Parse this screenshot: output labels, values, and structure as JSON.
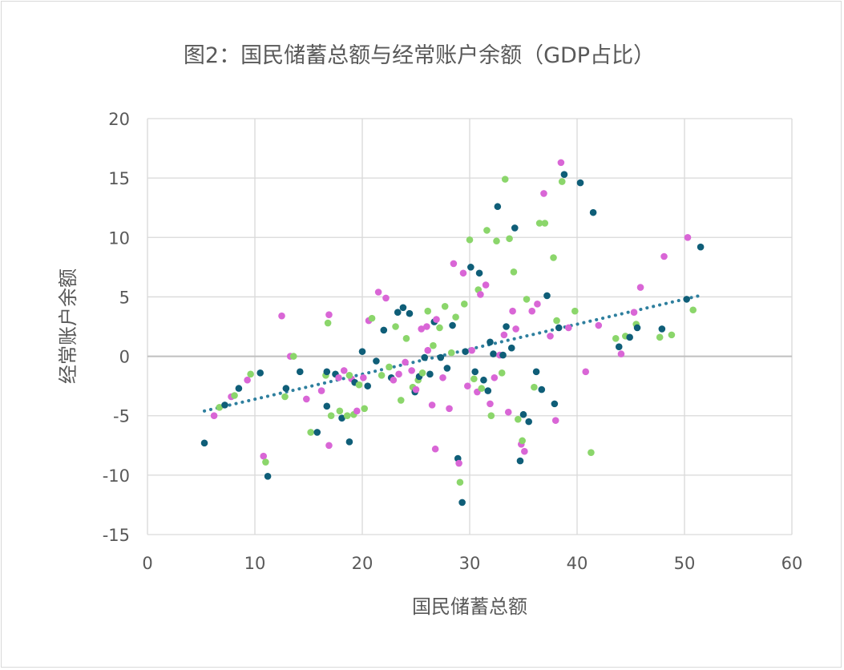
{
  "chart_data": {
    "type": "scatter",
    "title": "图2：国民储蓄总额与经常账户余额（GDP占比）",
    "xlabel": "国民储蓄总额",
    "ylabel": "经常账户余额",
    "xlim": [
      0,
      60
    ],
    "ylim": [
      -15,
      20
    ],
    "xticks": [
      "0",
      "10",
      "20",
      "30",
      "40",
      "50",
      "60"
    ],
    "yticks": [
      "-15",
      "-10",
      "-5",
      "0",
      "5",
      "10",
      "15",
      "20"
    ],
    "grid": true,
    "legend": "none",
    "palette": [
      "#0f5e78",
      "#1f4e20",
      "#2f9e44",
      "#8bd66b",
      "#e27a3f",
      "#f29d6b",
      "#6b1f6b",
      "#d966d6",
      "#5bbce6",
      "#1a8fce",
      "#c0551f"
    ],
    "trendline": {
      "style": "dotted",
      "color": "#2e7f9e",
      "from": [
        5.3,
        -4.6
      ],
      "to": [
        51.4,
        5.1
      ]
    },
    "points": [
      [
        5.3,
        -7.3
      ],
      [
        6.2,
        -5.0
      ],
      [
        6.7,
        -4.3
      ],
      [
        7.2,
        -4.1
      ],
      [
        7.8,
        -3.4
      ],
      [
        8.1,
        -3.3
      ],
      [
        8.5,
        -2.7
      ],
      [
        9.3,
        -2.0
      ],
      [
        9.6,
        -1.5
      ],
      [
        10.5,
        -1.4
      ],
      [
        10.8,
        -8.4
      ],
      [
        11.0,
        -8.9
      ],
      [
        11.2,
        -10.1
      ],
      [
        12.5,
        3.4
      ],
      [
        12.8,
        -3.4
      ],
      [
        12.9,
        -2.7
      ],
      [
        13.3,
        0.0
      ],
      [
        13.6,
        0.0
      ],
      [
        14.2,
        -1.3
      ],
      [
        14.8,
        -3.6
      ],
      [
        15.2,
        -6.4
      ],
      [
        15.8,
        -6.4
      ],
      [
        16.2,
        -2.9
      ],
      [
        16.6,
        -1.6
      ],
      [
        16.7,
        -1.3
      ],
      [
        16.9,
        3.5
      ],
      [
        16.8,
        2.8
      ],
      [
        16.7,
        -4.2
      ],
      [
        16.9,
        -7.5
      ],
      [
        17.1,
        -5.0
      ],
      [
        17.5,
        -1.5
      ],
      [
        17.8,
        -1.8
      ],
      [
        17.9,
        -4.6
      ],
      [
        18.1,
        -5.2
      ],
      [
        18.3,
        -1.2
      ],
      [
        18.6,
        -5.0
      ],
      [
        18.8,
        -7.2
      ],
      [
        19.0,
        -1.9
      ],
      [
        19.2,
        -4.9
      ],
      [
        19.3,
        -2.2
      ],
      [
        19.5,
        -4.6
      ],
      [
        19.7,
        -2.4
      ],
      [
        20.0,
        0.4
      ],
      [
        20.1,
        -1.8
      ],
      [
        20.2,
        -4.4
      ],
      [
        20.5,
        -2.5
      ],
      [
        20.6,
        3.0
      ],
      [
        20.9,
        3.2
      ],
      [
        21.3,
        -0.4
      ],
      [
        21.5,
        5.4
      ],
      [
        21.8,
        -1.6
      ],
      [
        22.0,
        2.2
      ],
      [
        22.2,
        4.9
      ],
      [
        22.5,
        -0.9
      ],
      [
        22.7,
        -1.8
      ],
      [
        22.9,
        -2.0
      ],
      [
        23.1,
        2.5
      ],
      [
        23.3,
        3.7
      ],
      [
        23.4,
        -1.5
      ],
      [
        23.6,
        -3.7
      ],
      [
        23.8,
        4.1
      ],
      [
        24.0,
        -0.5
      ],
      [
        24.1,
        1.5
      ],
      [
        24.4,
        3.6
      ],
      [
        24.6,
        -1.2
      ],
      [
        24.7,
        -2.6
      ],
      [
        24.9,
        -3.0
      ],
      [
        25.0,
        -2.8
      ],
      [
        25.2,
        -2.0
      ],
      [
        25.3,
        -1.7
      ],
      [
        25.5,
        2.3
      ],
      [
        25.6,
        -1.4
      ],
      [
        25.8,
        -0.1
      ],
      [
        26.0,
        2.5
      ],
      [
        26.1,
        3.8
      ],
      [
        26.3,
        -1.5
      ],
      [
        26.5,
        -4.1
      ],
      [
        26.6,
        0.9
      ],
      [
        26.7,
        2.9
      ],
      [
        26.9,
        3.1
      ],
      [
        27.2,
        2.4
      ],
      [
        27.3,
        -0.1
      ],
      [
        27.5,
        -1.8
      ],
      [
        27.7,
        4.2
      ],
      [
        27.9,
        -1.0
      ],
      [
        28.1,
        -4.4
      ],
      [
        28.3,
        0.3
      ],
      [
        28.4,
        2.6
      ],
      [
        28.5,
        7.8
      ],
      [
        28.7,
        3.3
      ],
      [
        28.9,
        -8.6
      ],
      [
        29.0,
        -9.0
      ],
      [
        29.1,
        -10.6
      ],
      [
        29.3,
        -12.3
      ],
      [
        29.4,
        7.0
      ],
      [
        29.5,
        4.4
      ],
      [
        29.6,
        0.4
      ],
      [
        29.8,
        -2.5
      ],
      [
        30.0,
        9.8
      ],
      [
        30.1,
        7.5
      ],
      [
        30.2,
        0.5
      ],
      [
        30.4,
        -1.9
      ],
      [
        30.5,
        -1.3
      ],
      [
        30.7,
        -3.0
      ],
      [
        30.8,
        5.6
      ],
      [
        30.9,
        7.0
      ],
      [
        31.0,
        5.2
      ],
      [
        31.1,
        -2.7
      ],
      [
        31.3,
        -2.0
      ],
      [
        31.5,
        6.0
      ],
      [
        31.6,
        10.6
      ],
      [
        31.7,
        -2.9
      ],
      [
        31.9,
        -4.0
      ],
      [
        32.0,
        -5.0
      ],
      [
        32.2,
        0.2
      ],
      [
        32.3,
        -1.8
      ],
      [
        32.5,
        9.7
      ],
      [
        32.6,
        12.6
      ],
      [
        32.8,
        0.1
      ],
      [
        33.0,
        -1.4
      ],
      [
        33.1,
        0.1
      ],
      [
        33.2,
        1.8
      ],
      [
        33.3,
        14.9
      ],
      [
        33.4,
        2.5
      ],
      [
        33.6,
        -4.7
      ],
      [
        33.7,
        9.9
      ],
      [
        33.9,
        0.7
      ],
      [
        34.0,
        3.8
      ],
      [
        34.1,
        7.1
      ],
      [
        34.2,
        10.8
      ],
      [
        34.3,
        2.3
      ],
      [
        34.5,
        -5.3
      ],
      [
        34.7,
        -8.8
      ],
      [
        34.8,
        -7.4
      ],
      [
        34.9,
        -7.1
      ],
      [
        35.0,
        -4.9
      ],
      [
        35.1,
        -8.0
      ],
      [
        35.3,
        4.8
      ],
      [
        35.5,
        -5.5
      ],
      [
        35.8,
        3.8
      ],
      [
        36.0,
        -2.6
      ],
      [
        36.2,
        -1.3
      ],
      [
        36.3,
        4.4
      ],
      [
        36.5,
        11.2
      ],
      [
        36.7,
        -2.8
      ],
      [
        36.9,
        13.7
      ],
      [
        37.0,
        11.2
      ],
      [
        37.2,
        5.1
      ],
      [
        37.5,
        1.7
      ],
      [
        37.8,
        8.3
      ],
      [
        37.9,
        -4.0
      ],
      [
        38.0,
        -5.4
      ],
      [
        38.1,
        3.0
      ],
      [
        38.3,
        2.4
      ],
      [
        38.5,
        16.3
      ],
      [
        38.6,
        14.7
      ],
      [
        38.8,
        15.3
      ],
      [
        39.2,
        2.4
      ],
      [
        39.8,
        3.8
      ],
      [
        40.3,
        14.6
      ],
      [
        40.8,
        -1.3
      ],
      [
        41.3,
        -8.1
      ],
      [
        41.5,
        12.1
      ],
      [
        42.0,
        2.6
      ],
      [
        43.6,
        1.5
      ],
      [
        43.9,
        0.8
      ],
      [
        44.1,
        0.2
      ],
      [
        44.5,
        1.7
      ],
      [
        44.9,
        1.6
      ],
      [
        45.3,
        3.7
      ],
      [
        45.5,
        2.7
      ],
      [
        45.6,
        2.4
      ],
      [
        45.9,
        5.8
      ],
      [
        47.7,
        1.6
      ],
      [
        47.9,
        2.3
      ],
      [
        48.1,
        8.4
      ],
      [
        48.8,
        1.8
      ],
      [
        50.2,
        4.8
      ],
      [
        50.3,
        10.0
      ],
      [
        50.8,
        3.9
      ],
      [
        51.5,
        9.2
      ],
      [
        26.8,
        -7.8
      ],
      [
        18.8,
        -1.6
      ],
      [
        31.9,
        1.2
      ],
      [
        26.1,
        0.5
      ]
    ]
  }
}
